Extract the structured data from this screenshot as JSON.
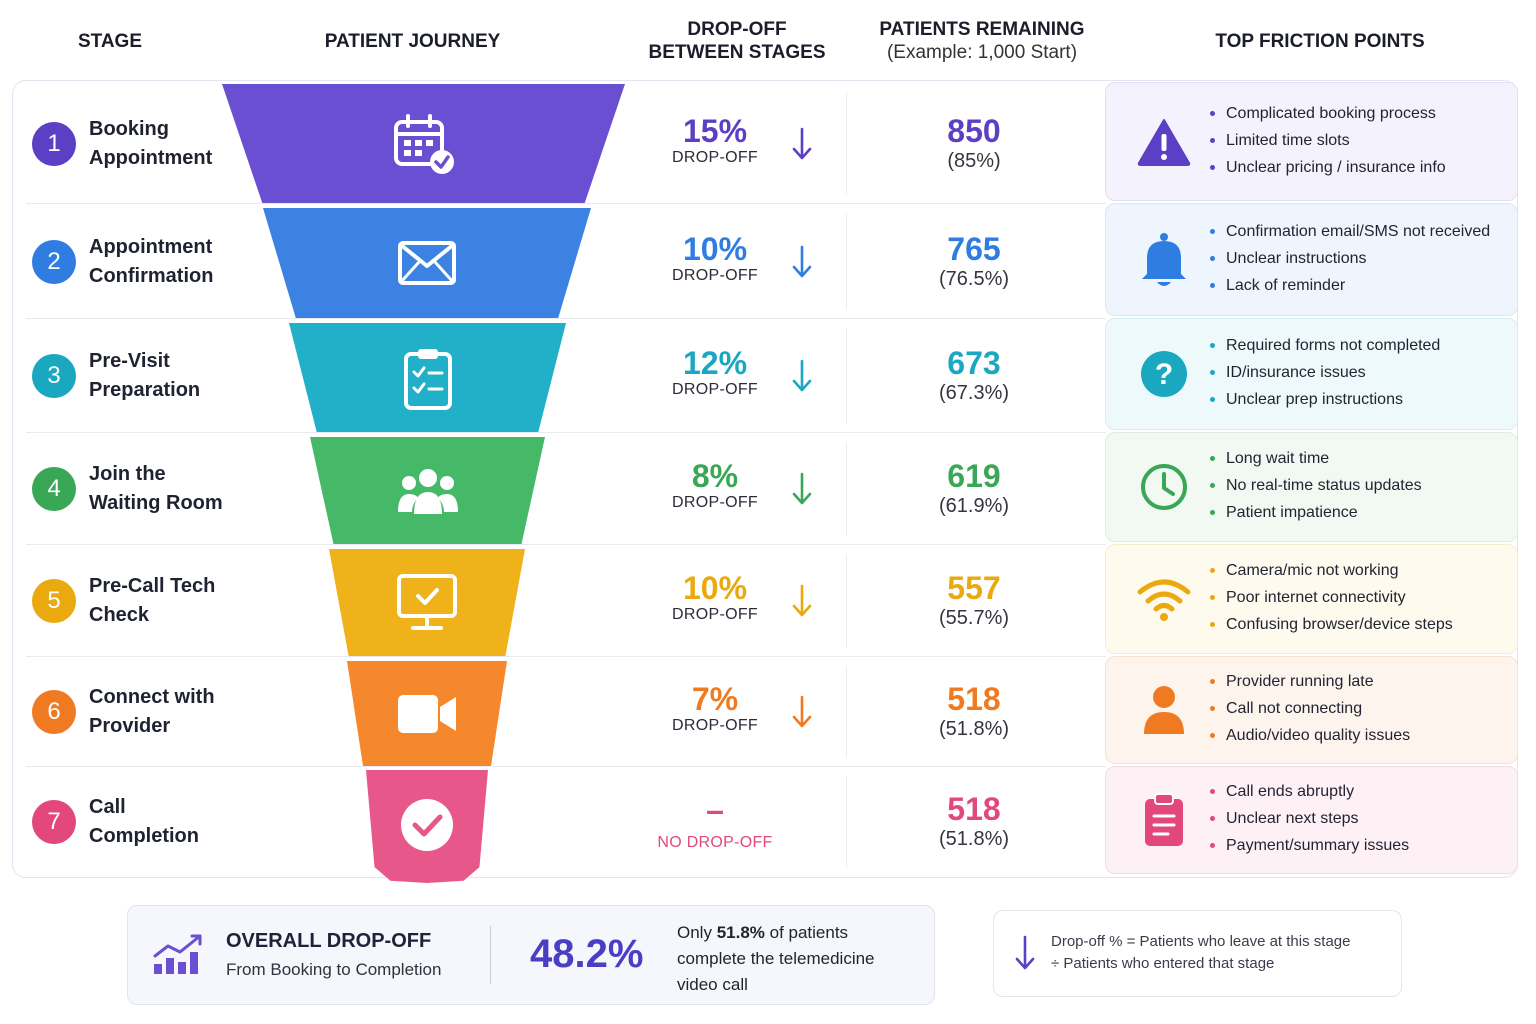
{
  "headers": {
    "stage": "STAGE",
    "journey": "PATIENT JOURNEY",
    "dropoff_line1": "DROP-OFF",
    "dropoff_line2": "BETWEEN STAGES",
    "remaining_line1": "PATIENTS REMAINING",
    "remaining_line2": "(Example: 1,000 Start)",
    "friction": "TOP FRICTION POINTS"
  },
  "chart_data": {
    "type": "funnel",
    "start_count": 1000,
    "stages": [
      {
        "num": "1",
        "line1": "Booking",
        "line2": "Appointment",
        "color": "#5b3fc4",
        "seg_color": "#6a4fd2",
        "icon": "calendar-check-icon",
        "dropoff": "15%",
        "dropoff_label": "DROP-OFF",
        "remaining": "850",
        "remaining_pct": "(85%)",
        "friction_icon": "alert-triangle-icon",
        "friction_bg": "#f4f2fd",
        "friction_border": "#e3def8",
        "friction": [
          "Complicated booking process",
          "Limited time slots",
          "Unclear pricing / insurance info"
        ]
      },
      {
        "num": "2",
        "line1": "Appointment",
        "line2": "Confirmation",
        "color": "#2f7de1",
        "seg_color": "#3b82e3",
        "icon": "envelope-icon",
        "dropoff": "10%",
        "dropoff_label": "DROP-OFF",
        "remaining": "765",
        "remaining_pct": "(76.5%)",
        "friction_icon": "bell-icon",
        "friction_bg": "#eff5fd",
        "friction_border": "#dbe7f8",
        "friction": [
          "Confirmation email/SMS not received",
          "Unclear instructions",
          "Lack of reminder"
        ]
      },
      {
        "num": "3",
        "line1": "Pre-Visit",
        "line2": "Preparation",
        "color": "#1aa7c0",
        "seg_color": "#22b0c8",
        "icon": "clipboard-checklist-icon",
        "dropoff": "12%",
        "dropoff_label": "DROP-OFF",
        "remaining": "673",
        "remaining_pct": "(67.3%)",
        "friction_icon": "question-circle-icon",
        "friction_bg": "#eef9fb",
        "friction_border": "#d6eff3",
        "friction": [
          "Required forms not completed",
          "ID/insurance issues",
          "Unclear prep instructions"
        ]
      },
      {
        "num": "4",
        "line1": "Join the",
        "line2": "Waiting Room",
        "color": "#3aa757",
        "seg_color": "#45b968",
        "icon": "group-people-icon",
        "dropoff": "8%",
        "dropoff_label": "DROP-OFF",
        "remaining": "619",
        "remaining_pct": "(61.9%)",
        "friction_icon": "clock-icon",
        "friction_bg": "#f1f9f2",
        "friction_border": "#dcefe0",
        "friction": [
          "Long wait time",
          "No real-time status updates",
          "Patient impatience"
        ]
      },
      {
        "num": "5",
        "line1": "Pre-Call Tech",
        "line2": "Check",
        "color": "#eaa90f",
        "seg_color": "#f0b21a",
        "icon": "monitor-check-icon",
        "dropoff": "10%",
        "dropoff_label": "DROP-OFF",
        "remaining": "557",
        "remaining_pct": "(55.7%)",
        "friction_icon": "wifi-icon",
        "friction_bg": "#fefaee",
        "friction_border": "#f6ecd0",
        "friction": [
          "Camera/mic not working",
          "Poor internet connectivity",
          "Confusing browser/device steps"
        ]
      },
      {
        "num": "6",
        "line1": "Connect with",
        "line2": "Provider",
        "color": "#f07a21",
        "seg_color": "#f5872c",
        "icon": "video-camera-icon",
        "dropoff": "7%",
        "dropoff_label": "DROP-OFF",
        "remaining": "518",
        "remaining_pct": "(51.8%)",
        "friction_icon": "user-icon",
        "friction_bg": "#fef4ee",
        "friction_border": "#f8e2d4",
        "friction": [
          "Provider running late",
          "Call not connecting",
          "Audio/video quality issues"
        ]
      },
      {
        "num": "7",
        "line1": "Call",
        "line2": "Completion",
        "color": "#e2487c",
        "seg_color": "#e8578a",
        "icon": "check-circle-icon",
        "dropoff": "–",
        "dropoff_label": "NO DROP-OFF",
        "remaining": "518",
        "remaining_pct": "(51.8%)",
        "friction_icon": "clipboard-list-icon",
        "friction_bg": "#fdf1f5",
        "friction_border": "#f6dce5",
        "friction": [
          "Call ends abruptly",
          "Unclear next steps",
          "Payment/summary issues"
        ]
      }
    ]
  },
  "summary": {
    "title": "OVERALL DROP-OFF",
    "subtitle": "From Booking to Completion",
    "value": "48.2%",
    "text_prefix": "Only ",
    "text_bold": "51.8%",
    "text_suffix": " of patients",
    "text_line2": "complete the telemedicine",
    "text_line3": "video call",
    "accent": "#4a3fc4"
  },
  "legend": {
    "line1": "Drop-off % = Patients who leave at this stage",
    "line2": "÷ Patients who entered that stage"
  }
}
